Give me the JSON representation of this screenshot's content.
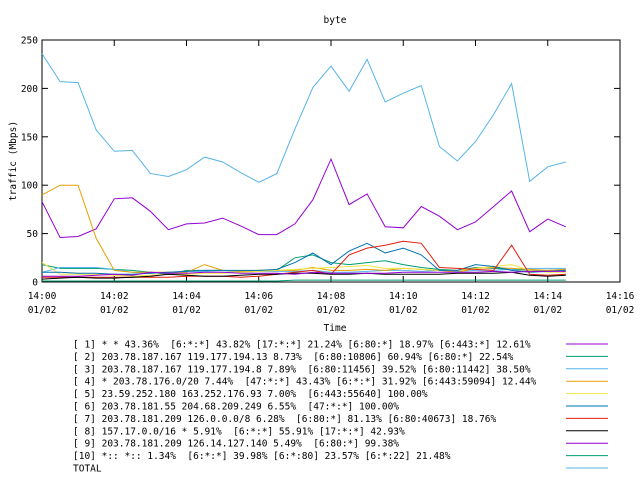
{
  "chart_data": {
    "type": "line",
    "title": "byte",
    "xlabel": "Time",
    "ylabel": "traffic (Mbps)",
    "x": [
      "14:00:00",
      "14:00:30",
      "14:01:00",
      "14:01:30",
      "14:02:00",
      "14:02:30",
      "14:03:00",
      "14:03:30",
      "14:04:00",
      "14:04:30",
      "14:05:00",
      "14:05:30",
      "14:06:00",
      "14:06:30",
      "14:07:00",
      "14:07:30",
      "14:08:00",
      "14:08:30",
      "14:09:00",
      "14:09:30",
      "14:10:00",
      "14:10:30",
      "14:11:00",
      "14:11:30",
      "14:12:00",
      "14:12:30",
      "14:13:00",
      "14:13:30",
      "14:14:00",
      "14:14:30"
    ],
    "xlim": [
      "14:00",
      "14:16"
    ],
    "xticks": [
      {
        "value": "14:00",
        "label": "14:00 01/02"
      },
      {
        "value": "14:02",
        "label": "14:02 01/02"
      },
      {
        "value": "14:04",
        "label": "14:04 01/02"
      },
      {
        "value": "14:06",
        "label": "14:06 01/02"
      },
      {
        "value": "14:08",
        "label": "14:08 01/02"
      },
      {
        "value": "14:10",
        "label": "14:10 01/02"
      },
      {
        "value": "14:12",
        "label": "14:12 01/02"
      },
      {
        "value": "14:14",
        "label": "14:14 01/02"
      },
      {
        "value": "14:16",
        "label": "14:16 01/02"
      }
    ],
    "ylim": [
      0,
      250
    ],
    "yticks": [
      0,
      50,
      100,
      150,
      200,
      250
    ],
    "legend": "bottom",
    "series": [
      {
        "name": "[ 1] * * 43.36%  [6:*:*] 43.82% [17:*:*] 21.24% [6:80:*] 18.97% [6:443:*] 12.61%",
        "color": "#9400d3",
        "values": [
          83,
          46,
          47,
          55,
          86,
          87,
          73,
          54,
          60,
          61,
          66,
          58,
          49,
          49,
          60,
          85,
          127,
          80,
          91,
          57,
          56,
          78,
          68,
          54,
          62,
          78,
          94,
          52,
          65,
          57
        ]
      },
      {
        "name": "[ 2] 203.78.187.167 119.177.194.13 8.73%  [6:80:10806] 60.94% [6:80:*] 22.54%",
        "color": "#009e73",
        "values": [
          18,
          14,
          14,
          14,
          13,
          12,
          10,
          8,
          12,
          12,
          12,
          11,
          12,
          12,
          25,
          28,
          20,
          18,
          20,
          22,
          18,
          15,
          13,
          12,
          15,
          14,
          13,
          12,
          12,
          13
        ]
      },
      {
        "name": "[ 3] 203.78.187.167 119.177.194.8 7.89%  [6:80:11456] 39.52% [6:80:11442] 38.50%",
        "color": "#56b4e9",
        "values": [
          10,
          15,
          15,
          15,
          13,
          10,
          9,
          10,
          11,
          11,
          10,
          10,
          11,
          11,
          11,
          12,
          10,
          10,
          11,
          12,
          12,
          11,
          12,
          11,
          12,
          12,
          13,
          14,
          14,
          14
        ]
      },
      {
        "name": "[ 4] * 203.78.176.0/20 7.44%  [47:*:*] 43.43% [6:*:*] 31.92% [6:443:59094] 12.44%",
        "color": "#e69f00",
        "values": [
          90,
          100,
          100,
          45,
          12,
          10,
          10,
          10,
          10,
          18,
          12,
          11,
          12,
          12,
          12,
          15,
          12,
          12,
          13,
          12,
          14,
          13,
          12,
          10,
          14,
          15,
          14,
          13,
          12,
          13
        ]
      },
      {
        "name": "[ 5] 23.59.252.180 163.252.176.93 7.00%  [6:443:55640] 100.00%",
        "color": "#f0e442",
        "values": [
          20,
          8,
          8,
          8,
          7,
          6,
          7,
          8,
          8,
          9,
          9,
          10,
          11,
          12,
          13,
          14,
          15,
          16,
          17,
          14,
          14,
          13,
          12,
          12,
          14,
          16,
          18,
          12,
          10,
          10
        ]
      },
      {
        "name": "[ 6] 203.78.181.55 204.68.209.249 6.55%  [47:*:*] 100.00%",
        "color": "#0072b2",
        "values": [
          10,
          10,
          9,
          9,
          8,
          8,
          9,
          10,
          11,
          12,
          12,
          12,
          12,
          13,
          20,
          30,
          18,
          32,
          40,
          30,
          35,
          28,
          12,
          12,
          18,
          16,
          12,
          10,
          11,
          12
        ]
      },
      {
        "name": "[ 7] 203.78.181.209 126.0.0.0/8 6.28%  [6:80:*] 81.13% [6:80:40673] 18.76%",
        "color": "#e51e10",
        "values": [
          5,
          5,
          5,
          5,
          5,
          5,
          5,
          5,
          6,
          6,
          6,
          5,
          6,
          8,
          10,
          12,
          8,
          28,
          35,
          38,
          42,
          40,
          15,
          14,
          13,
          12,
          38,
          8,
          7,
          8
        ]
      },
      {
        "name": "[ 8] 157.17.0.0/16 * 5.91%  [6:*:*] 55.91% [17:*:*] 42.93%",
        "color": "#000000",
        "values": [
          3,
          4,
          5,
          4,
          4,
          5,
          6,
          8,
          7,
          6,
          6,
          7,
          8,
          8,
          9,
          9,
          8,
          8,
          9,
          8,
          8,
          8,
          8,
          9,
          9,
          9,
          10,
          7,
          6,
          7
        ]
      },
      {
        "name": "[ 9] 203.78.181.209 126.14.127.140 5.49%  [6:80:*] 99.38%",
        "color": "#9400d3",
        "values": [
          6,
          6,
          6,
          7,
          8,
          7,
          10,
          9,
          9,
          10,
          10,
          9,
          9,
          9,
          8,
          10,
          9,
          9,
          9,
          9,
          10,
          10,
          10,
          10,
          10,
          11,
          10,
          11,
          11,
          11
        ]
      },
      {
        "name": "[10] *:: *:: 1.34%  [6:*:*] 39.98% [6:*:80] 23.57% [6:*:22] 21.48%",
        "color": "#009e73",
        "values": [
          1,
          1,
          1,
          1,
          1,
          1,
          1,
          1,
          1,
          1,
          1,
          1,
          1,
          1,
          2,
          2,
          2,
          2,
          2,
          2,
          2,
          2,
          2,
          2,
          2,
          2,
          2,
          2,
          2,
          2
        ]
      },
      {
        "name": "TOTAL",
        "color": "#56b4e9",
        "values": [
          236,
          207,
          206,
          157,
          135,
          136,
          112,
          109,
          116,
          129,
          124,
          113,
          103,
          112,
          158,
          201,
          223,
          197,
          230,
          186,
          195,
          203,
          140,
          125,
          145,
          173,
          205,
          104,
          119,
          124
        ]
      }
    ]
  }
}
